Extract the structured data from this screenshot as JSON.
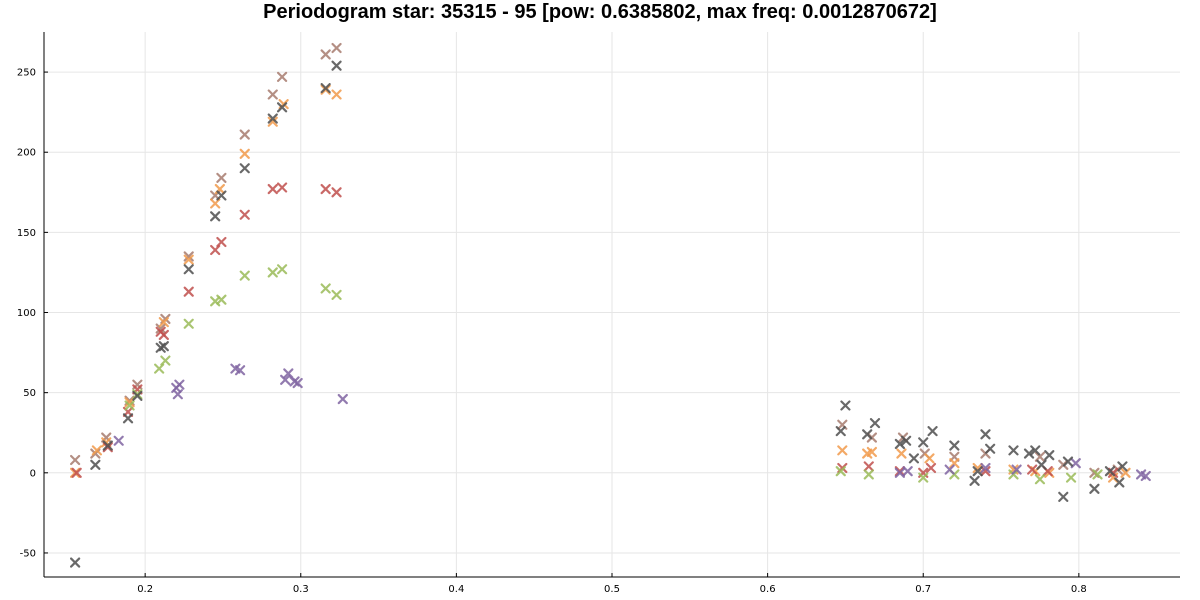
{
  "chart_data": {
    "type": "scatter",
    "title": "Periodogram star: 35315 - 95 [pow: 0.6385802, max freq: 0.0012870672]",
    "xlabel": "",
    "ylabel": "",
    "xlim": [
      0.135,
      0.865
    ],
    "ylim": [
      -65,
      275
    ],
    "xticks": [
      0.2,
      0.3,
      0.4,
      0.5,
      0.6,
      0.7,
      0.8
    ],
    "xtick_labels": [
      "0.2",
      "0.3",
      "0.4",
      "0.5",
      "0.6",
      "0.7",
      "0.8"
    ],
    "yticks": [
      -50,
      0,
      50,
      100,
      150,
      200,
      250
    ],
    "ytick_labels": [
      "-50",
      "0",
      "50",
      "100",
      "150",
      "200",
      "250"
    ],
    "grid": true,
    "legend": "none",
    "marker": "x",
    "series": [
      {
        "color": "#a87c6f",
        "points": [
          [
            0.155,
            8
          ],
          [
            0.168,
            12
          ],
          [
            0.175,
            22
          ],
          [
            0.19,
            45
          ],
          [
            0.195,
            55
          ],
          [
            0.21,
            90
          ],
          [
            0.213,
            96
          ],
          [
            0.228,
            135
          ],
          [
            0.245,
            173
          ],
          [
            0.249,
            184
          ],
          [
            0.264,
            211
          ],
          [
            0.282,
            236
          ],
          [
            0.288,
            247
          ],
          [
            0.316,
            261
          ],
          [
            0.323,
            265
          ],
          [
            0.648,
            30
          ],
          [
            0.667,
            22
          ],
          [
            0.687,
            22
          ],
          [
            0.701,
            12
          ],
          [
            0.72,
            10
          ],
          [
            0.74,
            12
          ],
          [
            0.775,
            10
          ],
          [
            0.79,
            5
          ],
          [
            0.81,
            0
          ],
          [
            0.825,
            2
          ]
        ]
      },
      {
        "color": "#f29b4c",
        "points": [
          [
            0.155,
            0
          ],
          [
            0.169,
            14
          ],
          [
            0.175,
            19
          ],
          [
            0.19,
            44
          ],
          [
            0.212,
            94
          ],
          [
            0.228,
            133
          ],
          [
            0.245,
            168
          ],
          [
            0.248,
            177
          ],
          [
            0.264,
            199
          ],
          [
            0.282,
            219
          ],
          [
            0.289,
            230
          ],
          [
            0.316,
            239
          ],
          [
            0.323,
            236
          ],
          [
            0.648,
            14
          ],
          [
            0.664,
            12
          ],
          [
            0.667,
            13
          ],
          [
            0.686,
            12
          ],
          [
            0.704,
            9
          ],
          [
            0.72,
            6
          ],
          [
            0.735,
            3
          ],
          [
            0.758,
            2
          ],
          [
            0.772,
            1
          ],
          [
            0.781,
            0
          ],
          [
            0.822,
            -3
          ],
          [
            0.83,
            0
          ]
        ]
      },
      {
        "color": "#c0504d",
        "points": [
          [
            0.156,
            0
          ],
          [
            0.176,
            16
          ],
          [
            0.189,
            38
          ],
          [
            0.195,
            52
          ],
          [
            0.21,
            88
          ],
          [
            0.212,
            86
          ],
          [
            0.228,
            113
          ],
          [
            0.245,
            139
          ],
          [
            0.249,
            144
          ],
          [
            0.264,
            161
          ],
          [
            0.282,
            177
          ],
          [
            0.288,
            178
          ],
          [
            0.316,
            177
          ],
          [
            0.323,
            175
          ],
          [
            0.648,
            3
          ],
          [
            0.665,
            4
          ],
          [
            0.685,
            1
          ],
          [
            0.7,
            0
          ],
          [
            0.705,
            3
          ],
          [
            0.74,
            1
          ],
          [
            0.77,
            2
          ],
          [
            0.78,
            1
          ],
          [
            0.822,
            0
          ]
        ]
      },
      {
        "color": "#9bbb59",
        "points": [
          [
            0.19,
            42
          ],
          [
            0.195,
            49
          ],
          [
            0.209,
            65
          ],
          [
            0.213,
            70
          ],
          [
            0.228,
            93
          ],
          [
            0.245,
            107
          ],
          [
            0.249,
            108
          ],
          [
            0.264,
            123
          ],
          [
            0.282,
            125
          ],
          [
            0.288,
            127
          ],
          [
            0.316,
            115
          ],
          [
            0.323,
            111
          ],
          [
            0.647,
            1
          ],
          [
            0.665,
            -1
          ],
          [
            0.7,
            -3
          ],
          [
            0.72,
            -1
          ],
          [
            0.758,
            -1
          ],
          [
            0.775,
            -4
          ],
          [
            0.795,
            -3
          ],
          [
            0.812,
            -1
          ]
        ]
      },
      {
        "color": "#8064a2",
        "points": [
          [
            0.183,
            20
          ],
          [
            0.22,
            53
          ],
          [
            0.222,
            55
          ],
          [
            0.221,
            49
          ],
          [
            0.258,
            65
          ],
          [
            0.261,
            64
          ],
          [
            0.29,
            58
          ],
          [
            0.292,
            62
          ],
          [
            0.296,
            57
          ],
          [
            0.298,
            56
          ],
          [
            0.327,
            46
          ],
          [
            0.685,
            0
          ],
          [
            0.69,
            1
          ],
          [
            0.717,
            2
          ],
          [
            0.74,
            3
          ],
          [
            0.76,
            2
          ],
          [
            0.798,
            6
          ],
          [
            0.84,
            -1
          ],
          [
            0.843,
            -2
          ]
        ]
      },
      {
        "color": "#505050",
        "points": [
          [
            0.155,
            -56
          ],
          [
            0.168,
            5
          ],
          [
            0.176,
            17
          ],
          [
            0.189,
            34
          ],
          [
            0.195,
            48
          ],
          [
            0.21,
            78
          ],
          [
            0.212,
            79
          ],
          [
            0.228,
            127
          ],
          [
            0.245,
            160
          ],
          [
            0.249,
            173
          ],
          [
            0.264,
            190
          ],
          [
            0.282,
            221
          ],
          [
            0.288,
            228
          ],
          [
            0.316,
            240
          ],
          [
            0.323,
            254
          ],
          [
            0.647,
            26
          ],
          [
            0.65,
            42
          ],
          [
            0.664,
            24
          ],
          [
            0.669,
            31
          ],
          [
            0.685,
            18
          ],
          [
            0.689,
            20
          ],
          [
            0.694,
            9
          ],
          [
            0.7,
            19
          ],
          [
            0.706,
            26
          ],
          [
            0.72,
            17
          ],
          [
            0.733,
            -5
          ],
          [
            0.735,
            1
          ],
          [
            0.74,
            24
          ],
          [
            0.743,
            15
          ],
          [
            0.758,
            14
          ],
          [
            0.768,
            12
          ],
          [
            0.772,
            14
          ],
          [
            0.776,
            5
          ],
          [
            0.781,
            11
          ],
          [
            0.79,
            -15
          ],
          [
            0.793,
            7
          ],
          [
            0.81,
            -10
          ],
          [
            0.82,
            1
          ],
          [
            0.826,
            -6
          ],
          [
            0.828,
            4
          ]
        ]
      }
    ]
  }
}
